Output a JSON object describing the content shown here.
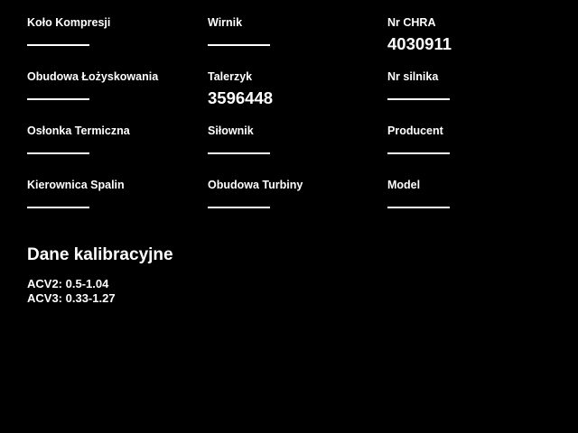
{
  "theme": {
    "background_color": "#000000",
    "text_color": "#ffffff"
  },
  "fields": [
    {
      "label": "Koło Kompresji",
      "value": ""
    },
    {
      "label": "Wirnik",
      "value": ""
    },
    {
      "label": "Nr CHRA",
      "value": "4030911"
    },
    {
      "label": "Obudowa Łożyskowania",
      "value": ""
    },
    {
      "label": "Talerzyk",
      "value": "3596448"
    },
    {
      "label": "Nr silnika",
      "value": ""
    },
    {
      "label": "Osłonka Termiczna",
      "value": ""
    },
    {
      "label": "Siłownik",
      "value": ""
    },
    {
      "label": "Producent",
      "value": ""
    },
    {
      "label": "Kierownica Spalin",
      "value": ""
    },
    {
      "label": "Obudowa Turbiny",
      "value": ""
    },
    {
      "label": "Model",
      "value": ""
    }
  ],
  "calibration": {
    "heading": "Dane kalibracyjne",
    "lines": [
      "ACV2: 0.5-1.04",
      "ACV3: 0.33-1.27"
    ]
  }
}
